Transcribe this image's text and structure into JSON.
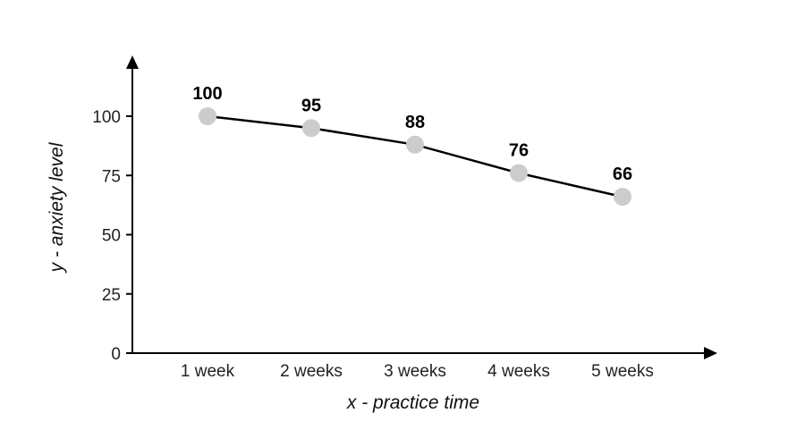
{
  "chart_data": {
    "type": "line",
    "categories": [
      "1 week",
      "2 weeks",
      "3 weeks",
      "4 weeks",
      "5 weeks"
    ],
    "values": [
      100,
      95,
      88,
      76,
      66
    ],
    "data_labels": [
      "100",
      "95",
      "88",
      "76",
      "66"
    ],
    "xlabel": "x - practice time",
    "ylabel": "y - anxiety level",
    "ylim": [
      0,
      100
    ],
    "yticks": [
      "0",
      "25",
      "50",
      "75",
      "100"
    ],
    "grid": false,
    "line_color": "#000000",
    "marker_color": "#cccccc"
  }
}
